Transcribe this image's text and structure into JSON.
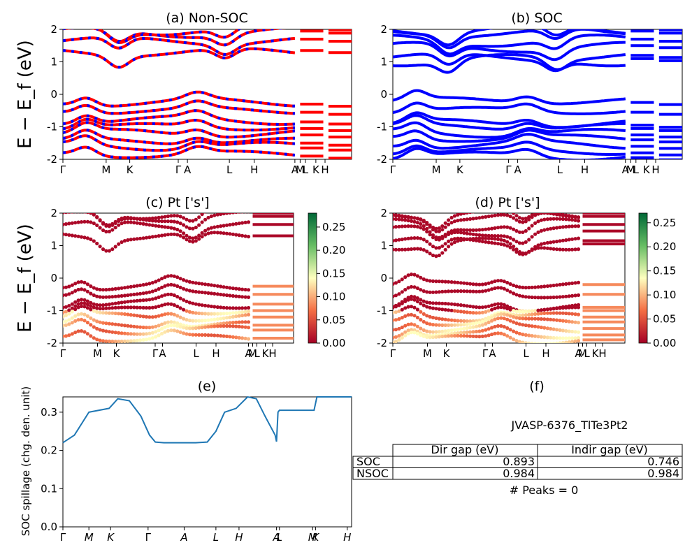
{
  "chart_data": [
    {
      "id": "a",
      "type": "line",
      "title": "(a) Non-SOC",
      "ylabel": "E − E_f (eV)",
      "ylim": [
        -2,
        2
      ],
      "yticks": [
        -2,
        -1,
        0,
        1,
        2
      ],
      "kpath": [
        "Γ",
        "M",
        "K",
        "Γ",
        "A",
        "L",
        "H",
        "A",
        "M",
        "L",
        "K",
        "H"
      ],
      "series_colors": [
        "#ff0000",
        "#0000ff"
      ],
      "bands_approx": {
        "conduction_min": 1.0,
        "conduction_levels": [
          1.65,
          1.9,
          2.0
        ],
        "valence_max": -0.05,
        "valence_levels": [
          -0.5,
          -0.8,
          -1.0,
          -1.2,
          -1.45,
          -1.6,
          -1.85
        ]
      }
    },
    {
      "id": "b",
      "type": "line",
      "title": "(b) SOC",
      "ylim": [
        -2,
        2
      ],
      "yticks": [
        -2,
        -1,
        0,
        1,
        2
      ],
      "kpath": [
        "Γ",
        "M",
        "K",
        "Γ",
        "A",
        "L",
        "H",
        "A",
        "M",
        "L",
        "K",
        "H"
      ],
      "series_colors": [
        "#0000ff"
      ],
      "bands_approx": {
        "conduction_min": 0.75,
        "conduction_levels": [
          1.15,
          1.45,
          1.65,
          1.9,
          2.0
        ],
        "valence_max": -0.0,
        "valence_levels": [
          -0.5,
          -0.9,
          -1.0,
          -1.2,
          -1.35,
          -1.55,
          -1.75,
          -1.9
        ]
      }
    },
    {
      "id": "c",
      "type": "scatter",
      "title": "(c)  Pt ['s']",
      "ylabel": "E − E_f (eV)",
      "ylim": [
        -2,
        2
      ],
      "yticks": [
        -2,
        -1,
        0,
        1,
        2
      ],
      "kpath": [
        "Γ",
        "M",
        "K",
        "Γ",
        "A",
        "L",
        "H",
        "A",
        "M",
        "L",
        "K",
        "H"
      ],
      "colorbar": {
        "min": 0.0,
        "max": 0.28,
        "ticks": [
          0.0,
          0.05,
          0.1,
          0.15,
          0.2,
          0.25
        ]
      }
    },
    {
      "id": "d",
      "type": "scatter",
      "title": "(d) Pt ['s']",
      "ylim": [
        -2,
        2
      ],
      "yticks": [
        -2,
        -1,
        0,
        1,
        2
      ],
      "kpath": [
        "Γ",
        "M",
        "K",
        "Γ",
        "A",
        "L",
        "H",
        "A",
        "M",
        "L",
        "K",
        "H"
      ],
      "colorbar": {
        "min": 0.0,
        "max": 0.27,
        "ticks": [
          0.0,
          0.05,
          0.1,
          0.15,
          0.2,
          0.25
        ]
      }
    },
    {
      "id": "e",
      "type": "line",
      "title": "(e)",
      "ylabel": "SOC spillage (chg. den. unit)",
      "ylim": [
        0.0,
        0.34
      ],
      "yticks": [
        0.0,
        0.1,
        0.2,
        0.3
      ],
      "kpath": [
        "Γ",
        "M",
        "K",
        "Γ",
        "A",
        "L",
        "H",
        "A",
        "L",
        "M",
        "K",
        "H"
      ],
      "series": [
        {
          "color": "#1f77b4",
          "x": [
            0,
            0.04,
            0.09,
            0.16,
            0.19,
            0.23,
            0.27,
            0.3,
            0.32,
            0.35,
            0.38,
            0.42,
            0.46,
            0.5,
            0.53,
            0.56,
            0.6,
            0.64,
            0.67,
            0.7,
            0.735,
            0.74,
            0.745,
            0.75,
            0.8,
            0.86,
            0.87,
            0.88,
            0.89,
            1.0
          ],
          "values": [
            0.22,
            0.24,
            0.3,
            0.31,
            0.335,
            0.33,
            0.29,
            0.24,
            0.222,
            0.22,
            0.22,
            0.22,
            0.22,
            0.222,
            0.25,
            0.3,
            0.31,
            0.34,
            0.335,
            0.29,
            0.24,
            0.223,
            0.3,
            0.305,
            0.305,
            0.305,
            0.305,
            0.34,
            0.34,
            0.34
          ]
        }
      ]
    }
  ],
  "panel_f": {
    "title": "(f)",
    "material": "JVASP-6376_TlTe3Pt2",
    "table": {
      "headers": [
        "",
        "Dir gap (eV)",
        "Indir gap (eV)"
      ],
      "rows": [
        [
          "SOC",
          "0.893",
          "0.746"
        ],
        [
          "NSOC",
          "0.984",
          "0.984"
        ]
      ]
    },
    "peaks": "# Peaks = 0"
  }
}
